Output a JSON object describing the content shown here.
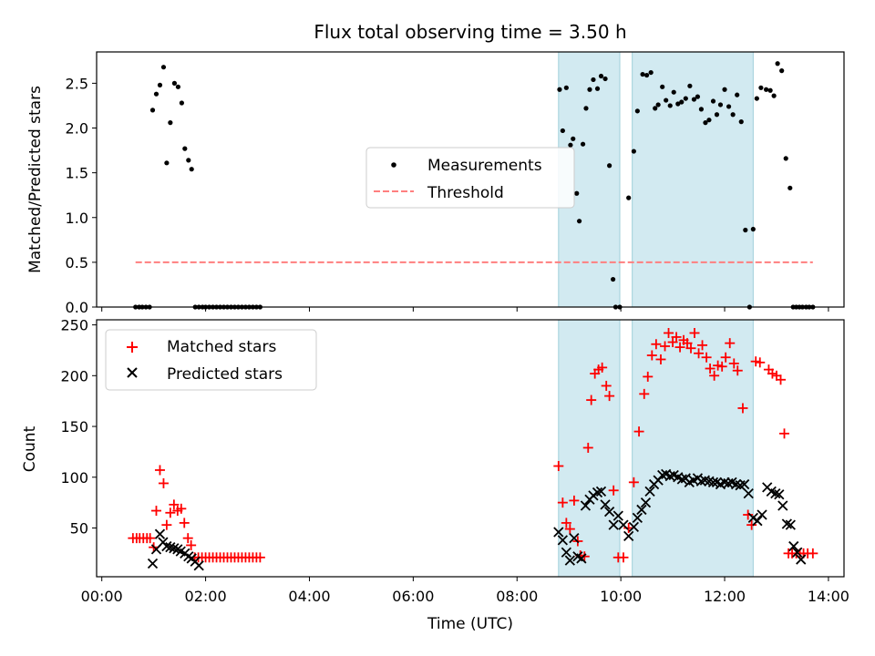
{
  "chart_data": [
    {
      "type": "scatter",
      "title": "Flux total observing time = 3.50 h",
      "xlabel": "",
      "ylabel": "Matched/Predicted stars",
      "xlim": [
        -0.1,
        14.3
      ],
      "ylim": [
        0,
        2.85
      ],
      "grid": false,
      "yticks": [
        0.0,
        0.5,
        1.0,
        1.5,
        2.0,
        2.5
      ],
      "ytick_labels": [
        "0.0",
        "0.5",
        "1.0",
        "1.5",
        "2.0",
        "2.5"
      ],
      "xticks": [
        0,
        2,
        4,
        6,
        8,
        10,
        12,
        14
      ],
      "xtick_labels": [],
      "shaded_regions": [
        [
          8.8,
          9.98
        ],
        [
          10.22,
          12.55
        ]
      ],
      "shade_color": "#add8e6",
      "legend": {
        "position": "center",
        "entries": [
          {
            "label": "Measurements",
            "marker": "dot",
            "color": "#000000"
          },
          {
            "label": "Threshold",
            "marker": "dashed-line",
            "color": "#ff7f7f"
          }
        ]
      },
      "threshold": {
        "value": 0.5,
        "x_range": [
          0.65,
          13.7
        ],
        "color": "#ff7f7f"
      },
      "series": [
        {
          "name": "Measurements",
          "color": "#000000",
          "x": [
            0.65,
            0.72,
            0.78,
            0.85,
            0.92,
            0.98,
            1.05,
            1.12,
            1.19,
            1.25,
            1.32,
            1.4,
            1.47,
            1.54,
            1.6,
            1.67,
            1.73,
            1.8,
            1.87,
            1.94,
            2.0,
            2.07,
            2.14,
            2.21,
            2.28,
            2.35,
            2.42,
            2.49,
            2.56,
            2.63,
            2.7,
            2.77,
            2.84,
            2.91,
            2.98,
            3.05,
            8.82,
            8.88,
            8.95,
            9.03,
            9.08,
            9.15,
            9.2,
            9.27,
            9.33,
            9.4,
            9.47,
            9.55,
            9.62,
            9.7,
            9.78,
            9.85,
            9.9,
            9.98,
            10.15,
            10.25,
            10.32,
            10.42,
            10.5,
            10.58,
            10.66,
            10.72,
            10.8,
            10.87,
            10.95,
            11.02,
            11.1,
            11.17,
            11.25,
            11.33,
            11.41,
            11.48,
            11.55,
            11.63,
            11.7,
            11.78,
            11.85,
            11.92,
            12.0,
            12.08,
            12.16,
            12.24,
            12.32,
            12.4,
            12.48,
            12.55,
            12.62,
            12.7,
            12.8,
            12.88,
            12.95,
            13.02,
            13.1,
            13.18,
            13.26,
            13.32,
            13.38,
            13.44,
            13.5,
            13.57,
            13.63,
            13.7
          ],
          "y": [
            0,
            0,
            0,
            0,
            0,
            2.2,
            2.38,
            2.48,
            2.68,
            1.61,
            2.06,
            2.5,
            2.46,
            2.28,
            1.77,
            1.64,
            1.54,
            0,
            0,
            0,
            0,
            0,
            0,
            0,
            0,
            0,
            0,
            0,
            0,
            0,
            0,
            0,
            0,
            0,
            0,
            0,
            2.43,
            1.97,
            2.45,
            1.81,
            1.88,
            1.27,
            0.96,
            1.82,
            2.22,
            2.43,
            2.54,
            2.44,
            2.58,
            2.55,
            1.58,
            0.31,
            0,
            0,
            1.22,
            1.74,
            2.19,
            2.6,
            2.59,
            2.62,
            2.22,
            2.26,
            2.46,
            2.31,
            2.25,
            2.4,
            2.27,
            2.29,
            2.33,
            2.47,
            2.32,
            2.35,
            2.21,
            2.06,
            2.09,
            2.3,
            2.15,
            2.26,
            2.43,
            2.24,
            2.15,
            2.37,
            2.07,
            0.86,
            0,
            0.87,
            2.33,
            2.45,
            2.43,
            2.42,
            2.36,
            2.72,
            2.64,
            1.66,
            1.33,
            0,
            0,
            0,
            0,
            0,
            0,
            0
          ]
        }
      ]
    },
    {
      "type": "scatter",
      "title": "",
      "xlabel": "Time (UTC)",
      "ylabel": "Count",
      "xlim": [
        -0.1,
        14.3
      ],
      "ylim": [
        2,
        255
      ],
      "grid": false,
      "yticks": [
        50,
        100,
        150,
        200,
        250
      ],
      "ytick_labels": [
        "50",
        "100",
        "150",
        "200",
        "250"
      ],
      "xticks": [
        0,
        2,
        4,
        6,
        8,
        10,
        12,
        14
      ],
      "xtick_labels": [
        "00:00",
        "02:00",
        "04:00",
        "06:00",
        "08:00",
        "10:00",
        "12:00",
        "14:00"
      ],
      "shaded_regions": [
        [
          8.8,
          9.98
        ],
        [
          10.22,
          12.55
        ]
      ],
      "shade_color": "#add8e6",
      "legend": {
        "position": "top-left",
        "entries": [
          {
            "label": "Matched stars",
            "marker": "plus",
            "color": "#ff0000"
          },
          {
            "label": "Predicted stars",
            "marker": "x",
            "color": "#000000"
          }
        ]
      },
      "series": [
        {
          "name": "Matched stars",
          "marker": "plus",
          "color": "#ff0000",
          "x": [
            0.6,
            0.67,
            0.73,
            0.8,
            0.87,
            0.93,
            1.0,
            1.05,
            1.12,
            1.19,
            1.25,
            1.32,
            1.39,
            1.46,
            1.53,
            1.59,
            1.66,
            1.72,
            1.79,
            1.86,
            1.93,
            2.0,
            2.07,
            2.14,
            2.21,
            2.28,
            2.35,
            2.42,
            2.49,
            2.56,
            2.63,
            2.7,
            2.77,
            2.84,
            2.91,
            2.98,
            3.05,
            8.8,
            8.88,
            8.95,
            9.02,
            9.1,
            9.17,
            9.22,
            9.3,
            9.37,
            9.43,
            9.5,
            9.57,
            9.64,
            9.72,
            9.78,
            9.86,
            9.95,
            10.05,
            10.15,
            10.25,
            10.35,
            10.45,
            10.52,
            10.6,
            10.68,
            10.77,
            10.85,
            10.92,
            11.0,
            11.07,
            11.14,
            11.21,
            11.28,
            11.35,
            11.42,
            11.5,
            11.57,
            11.65,
            11.72,
            11.8,
            11.87,
            11.95,
            12.02,
            12.1,
            12.18,
            12.25,
            12.35,
            12.45,
            12.52,
            12.6,
            12.68,
            12.85,
            12.92,
            13.0,
            13.08,
            13.15,
            13.23,
            13.3,
            13.38,
            13.45,
            13.52,
            13.6,
            13.7
          ],
          "y": [
            40,
            40,
            40,
            40,
            40,
            40,
            31,
            67,
            107,
            94,
            53,
            65,
            73,
            67,
            69,
            55,
            40,
            33,
            21,
            21,
            21,
            21,
            21,
            21,
            21,
            21,
            21,
            21,
            21,
            21,
            21,
            21,
            21,
            21,
            21,
            21,
            21,
            111,
            75,
            55,
            49,
            77,
            37,
            23,
            22,
            129,
            176,
            202,
            206,
            208,
            190,
            180,
            87,
            21,
            21,
            50,
            95,
            145,
            182,
            199,
            220,
            231,
            216,
            229,
            242,
            233,
            238,
            228,
            235,
            232,
            227,
            242,
            222,
            230,
            218,
            207,
            200,
            210,
            209,
            218,
            232,
            212,
            205,
            168,
            63,
            53,
            214,
            213,
            206,
            202,
            200,
            196,
            143,
            25,
            25,
            25,
            25,
            25,
            25,
            25
          ],
          "display_indices": [
            0,
            1,
            2,
            3,
            4,
            5,
            6,
            7,
            8,
            9,
            10,
            11,
            12,
            13,
            14,
            15,
            16,
            17,
            18,
            19,
            20,
            21,
            22,
            23,
            24,
            25,
            26,
            27,
            28,
            29,
            30,
            31,
            32,
            33,
            34,
            35,
            36,
            37,
            38,
            39,
            40,
            41,
            42,
            43,
            44,
            45,
            46,
            47,
            48,
            49,
            50,
            51,
            52,
            53,
            54,
            55,
            56,
            57,
            58,
            59,
            60,
            61,
            62,
            63,
            64,
            65,
            66,
            67,
            68,
            69,
            70,
            71,
            72,
            73,
            74,
            75,
            76,
            77,
            78,
            79,
            80,
            81,
            82,
            83,
            84,
            85,
            86,
            87,
            88,
            89,
            90,
            91,
            92,
            93,
            94,
            95,
            96
          ]
        },
        {
          "name": "Predicted stars",
          "marker": "x",
          "color": "#000000",
          "x": [
            0.98,
            1.05,
            1.12,
            1.18,
            1.25,
            1.32,
            1.39,
            1.46,
            1.52,
            1.6,
            1.67,
            1.73,
            1.8,
            1.87,
            8.8,
            8.88,
            8.95,
            9.02,
            9.1,
            9.17,
            9.24,
            9.32,
            9.4,
            9.47,
            9.55,
            9.62,
            9.7,
            9.78,
            9.86,
            9.95,
            10.05,
            10.15,
            10.25,
            10.32,
            10.4,
            10.48,
            10.56,
            10.64,
            10.72,
            10.8,
            10.87,
            10.95,
            11.02,
            11.1,
            11.18,
            11.25,
            11.32,
            11.4,
            11.48,
            11.55,
            11.62,
            11.7,
            11.78,
            11.85,
            11.92,
            12.0,
            12.07,
            12.14,
            12.22,
            12.3,
            12.38,
            12.46,
            12.55,
            12.63,
            12.72,
            12.82,
            12.9,
            12.98,
            13.05,
            13.12,
            13.2,
            13.27,
            13.33,
            13.4,
            13.47
          ],
          "y": [
            15,
            29,
            44,
            36,
            32,
            31,
            30,
            29,
            27,
            25,
            22,
            20,
            17,
            13,
            46,
            38,
            26,
            18,
            40,
            22,
            20,
            72,
            78,
            82,
            85,
            86,
            73,
            66,
            53,
            62,
            53,
            42,
            51,
            60,
            68,
            75,
            86,
            93,
            97,
            102,
            103,
            101,
            102,
            100,
            98,
            99,
            95,
            97,
            99,
            96,
            97,
            96,
            95,
            95,
            93,
            95,
            94,
            95,
            93,
            92,
            93,
            84,
            60,
            57,
            63,
            90,
            86,
            84,
            83,
            72,
            54,
            53,
            32,
            26,
            19
          ]
        }
      ]
    }
  ]
}
